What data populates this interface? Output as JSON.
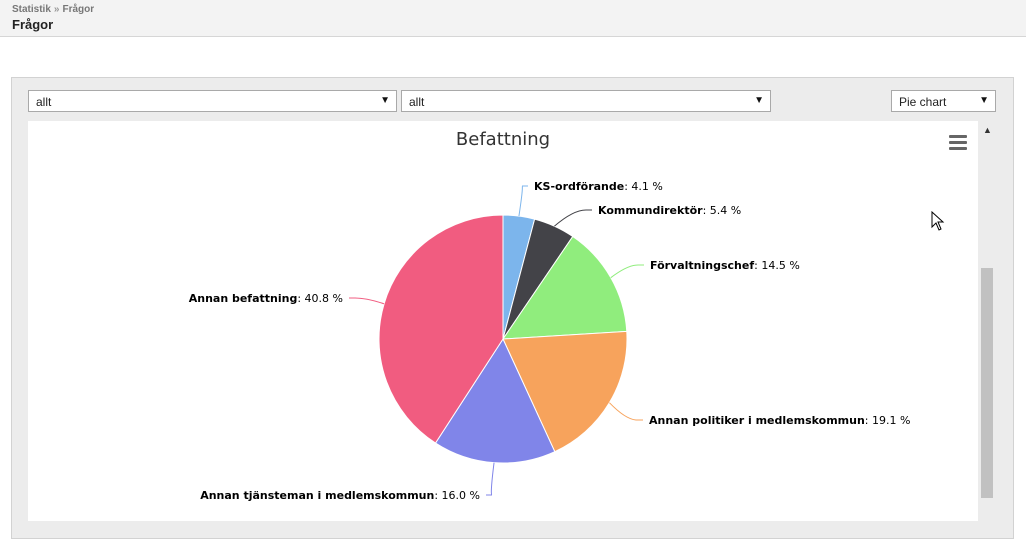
{
  "header": {
    "breadcrumb": [
      "Statistik",
      "Frågor"
    ],
    "breadcrumb_sep": "»",
    "title": "Frågor"
  },
  "filters": {
    "select1": "allt",
    "select2": "allt",
    "chart_type": "Pie chart"
  },
  "chart_data": {
    "type": "pie",
    "title": "Befattning",
    "slices": [
      {
        "label": "KS-ordförande",
        "value": 4.1,
        "color": "#7cb5ec"
      },
      {
        "label": "Kommundirektör",
        "value": 5.4,
        "color": "#434348"
      },
      {
        "label": "Förvaltningschef",
        "value": 14.5,
        "color": "#90ed7d"
      },
      {
        "label": "Annan politiker i medlemskommun",
        "value": 19.1,
        "color": "#f7a35c"
      },
      {
        "label": "Annan tjänsteman i medlemskommun",
        "value": 16.0,
        "color": "#8085e9"
      },
      {
        "label": "Annan befattning",
        "value": 40.8,
        "color": "#f15c80"
      }
    ],
    "unit": "%"
  },
  "icons": {
    "menu": "hamburger-menu-icon",
    "dropdown": "chevron-down-icon",
    "cursor": "mouse-pointer-icon"
  }
}
